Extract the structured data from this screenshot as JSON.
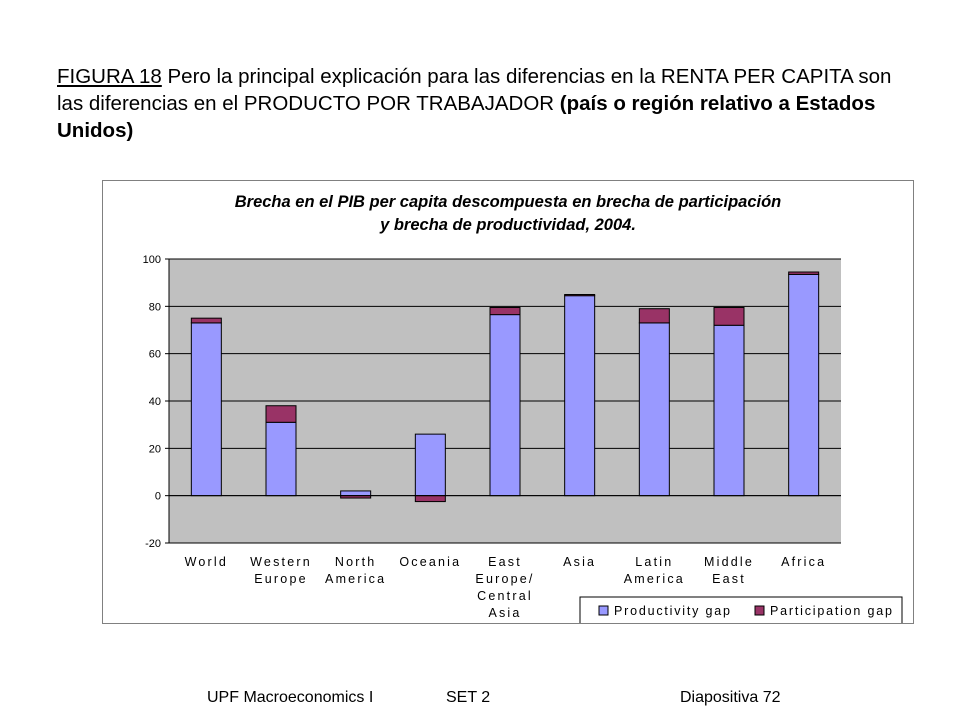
{
  "heading": {
    "label": "FIGURA 18",
    "normal": " Pero la principal explicación para las diferencias en la RENTA PER CAPITA son las diferencias en el PRODUCTO POR TRABAJADOR ",
    "bold": "(país o región relativo a Estados Unidos)"
  },
  "footer": {
    "course": "UPF Macroeconomics I",
    "set": "SET 2",
    "slide": "Diapositiva 72"
  },
  "chart_data": {
    "type": "bar",
    "stacked": true,
    "title_line1": "Brecha en el PIB per capita descompuesta en brecha de participación",
    "title_line2": "y brecha de productividad, 2004.",
    "categories": [
      [
        "World"
      ],
      [
        "Western",
        "Europe"
      ],
      [
        "North",
        "America"
      ],
      [
        "Oceania"
      ],
      [
        "East",
        "Europe/",
        "Central",
        "Asia"
      ],
      [
        "Asia"
      ],
      [
        "Latin",
        "America"
      ],
      [
        "Middle",
        "East"
      ],
      [
        "Africa"
      ]
    ],
    "series": [
      {
        "name": "Productivity gap",
        "color": "#9999ff",
        "values": [
          73,
          31,
          2,
          26,
          76.5,
          84.5,
          73,
          72,
          93.5
        ]
      },
      {
        "name": "Participation gap",
        "color": "#993366",
        "values": [
          2,
          7,
          -1,
          -2.5,
          3,
          0.5,
          6,
          7.5,
          1
        ]
      }
    ],
    "ylim": [
      -20,
      100
    ],
    "yticks": [
      -20,
      0,
      20,
      40,
      60,
      80,
      100
    ],
    "plot_background": "#c0c0c0",
    "grid": true,
    "legend_position": "bottom-right"
  }
}
